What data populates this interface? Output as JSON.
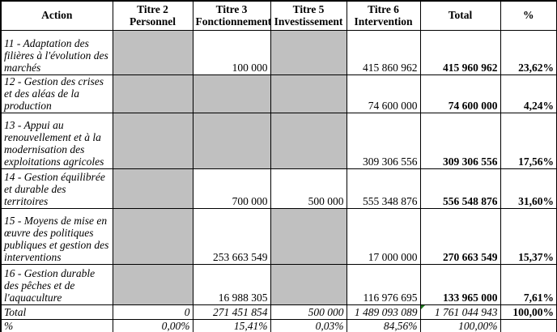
{
  "table": {
    "columns": [
      {
        "line1": "Action",
        "line2": ""
      },
      {
        "line1": "Titre 2",
        "line2": "Personnel"
      },
      {
        "line1": "Titre 3",
        "line2": "Fonctionnement"
      },
      {
        "line1": "Titre 5",
        "line2": "Investissement"
      },
      {
        "line1": "Titre 6",
        "line2": "Intervention"
      },
      {
        "line1": "Total",
        "line2": ""
      },
      {
        "line1": "%",
        "line2": ""
      }
    ],
    "rows": [
      {
        "label": "11 - Adaptation des filières à l'évolution des marchés",
        "titre2": "",
        "titre3": "100 000",
        "titre5": "",
        "titre6": "415 860 962",
        "total": "415 960 962",
        "pct": "23,62%",
        "shaded_columns": [
          "titre2",
          "titre5"
        ]
      },
      {
        "label": "12 - Gestion des crises et des aléas de la production",
        "titre2": "",
        "titre3": "",
        "titre5": "",
        "titre6": "74 600 000",
        "total": "74 600 000",
        "pct": "4,24%",
        "shaded_columns": [
          "titre2",
          "titre3",
          "titre5"
        ]
      },
      {
        "label": "13 - Appui au renouvellement et à la modernisation des exploitations agricoles",
        "titre2": "",
        "titre3": "",
        "titre5": "",
        "titre6": "309 306 556",
        "total": "309 306 556",
        "pct": "17,56%",
        "shaded_columns": [
          "titre2",
          "titre3",
          "titre5"
        ]
      },
      {
        "label": "14 - Gestion équilibrée et durable des territoires",
        "titre2": "",
        "titre3": "700 000",
        "titre5": "500 000",
        "titre6": "555 348 876",
        "total": "556 548 876",
        "pct": "31,60%",
        "shaded_columns": [
          "titre2"
        ]
      },
      {
        "label": "15 - Moyens de mise en œuvre des politiques publiques et gestion des interventions",
        "titre2": "",
        "titre3": "253 663 549",
        "titre5": "",
        "titre6": "17 000 000",
        "total": "270 663 549",
        "pct": "15,37%",
        "shaded_columns": [
          "titre2",
          "titre5"
        ]
      },
      {
        "label": "16 - Gestion durable des pêches et de l'aquaculture",
        "titre2": "",
        "titre3": "16 988 305",
        "titre5": "",
        "titre6": "116 976 695",
        "total": "133 965 000",
        "pct": "7,61%",
        "shaded_columns": [
          "titre2",
          "titre5"
        ]
      }
    ],
    "total_row": {
      "label": "Total",
      "titre2": "0",
      "titre3": "271 451 854",
      "titre5": "500 000",
      "titre6": "1 489 093 089",
      "total": "1 761 044 943",
      "pct": "100,00%",
      "has_error_indicator_on_total": true
    },
    "pct_row": {
      "label": "%",
      "titre2": "0,00%",
      "titre3": "15,41%",
      "titre5": "0,03%",
      "titre6": "84,56%",
      "total": "100,00%",
      "pct": ""
    }
  },
  "colors": {
    "shaded_cell": "#c0c0c0",
    "border": "#000000",
    "error_indicator": "#1e7a1e"
  }
}
